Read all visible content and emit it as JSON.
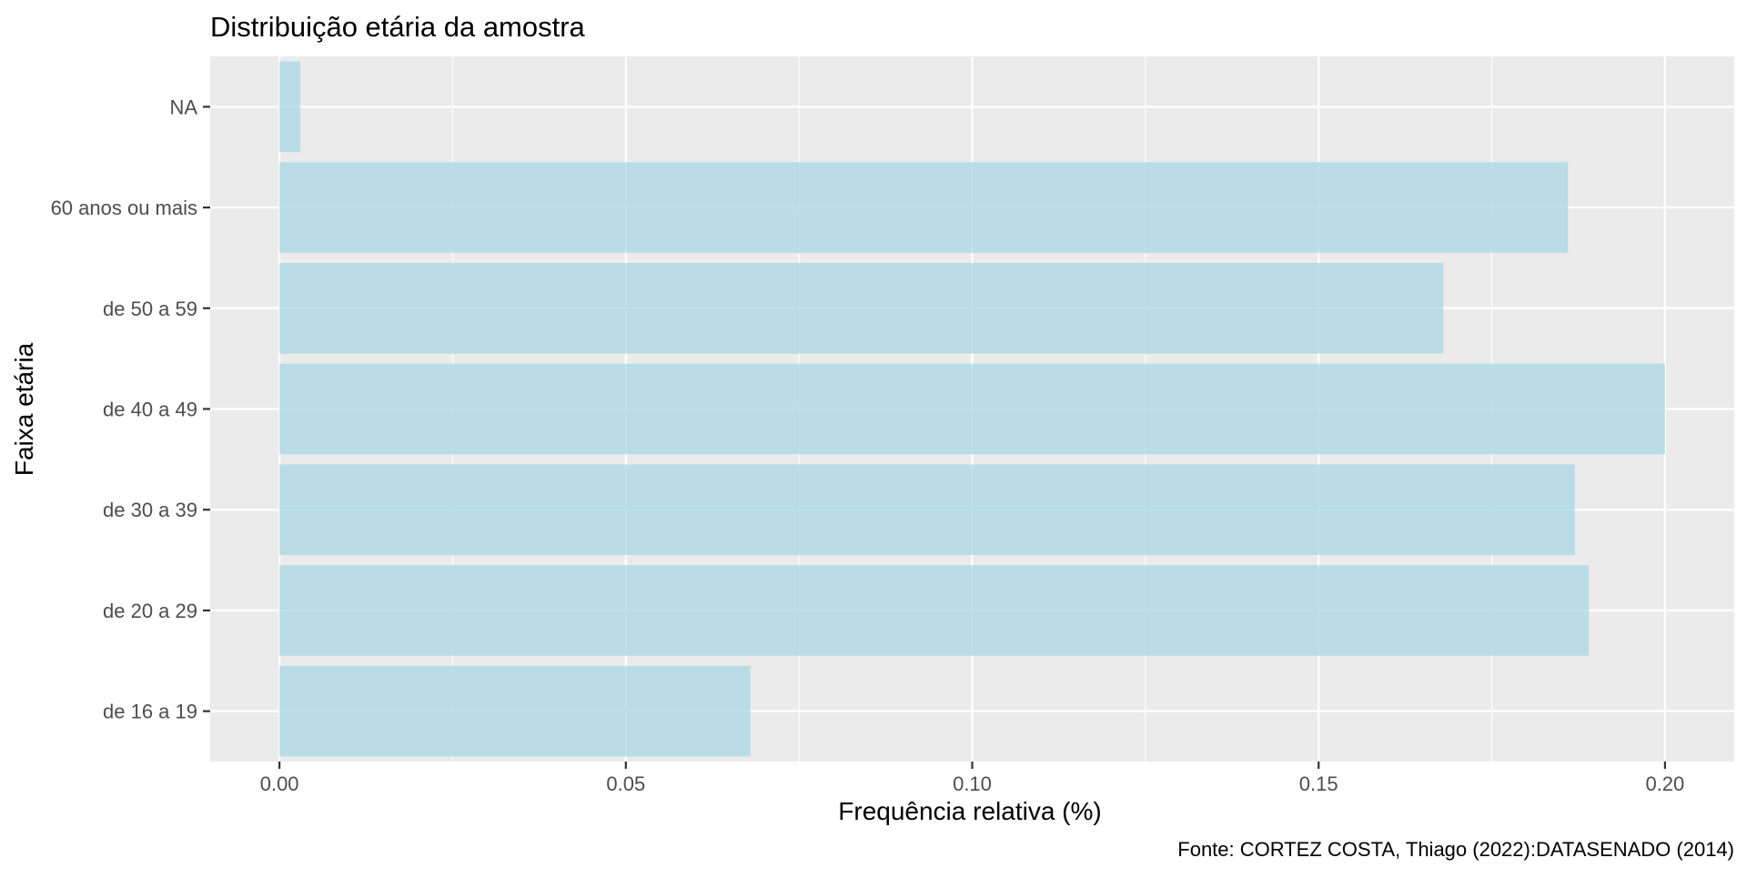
{
  "chart_data": {
    "type": "bar",
    "orientation": "horizontal",
    "title": "Distribuição etária da amostra",
    "xlabel": "Frequência relativa (%)",
    "ylabel": "Faixa etária",
    "caption": "Fonte: CORTEZ COSTA, Thiago (2022):DATASENADO (2014)",
    "categories": [
      "de 16 a 19",
      "de 20 a 29",
      "de 30 a 39",
      "de 40 a 49",
      "de 50 a 59",
      "60 anos ou mais",
      "NA"
    ],
    "values": [
      0.068,
      0.189,
      0.187,
      0.2,
      0.168,
      0.186,
      0.003
    ],
    "xlim": [
      -0.01,
      0.21
    ],
    "xticks": [
      0.0,
      0.05,
      0.1,
      0.15,
      0.2
    ],
    "xtick_labels": [
      "0.00",
      "0.05",
      "0.10",
      "0.15",
      "0.20"
    ],
    "grid": true,
    "legend": "none",
    "colors": {
      "bar": "#add8e6",
      "panel_background": "#ebebeb",
      "grid": "#ffffff",
      "text": "#4d4d4d",
      "title": "#000000"
    }
  }
}
